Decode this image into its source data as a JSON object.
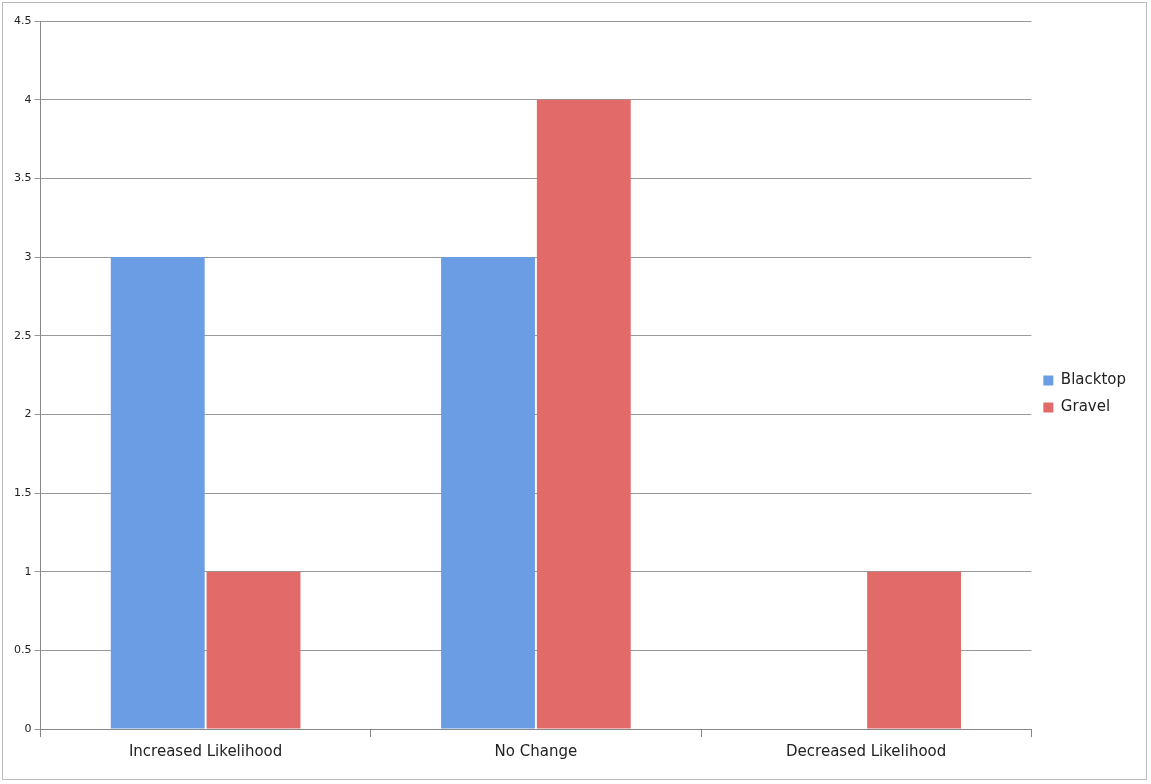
{
  "chart_data": {
    "type": "bar",
    "categories": [
      "Increased Likelihood",
      "No Change",
      "Decreased Likelihood"
    ],
    "series": [
      {
        "name": "Blacktop",
        "color": "#6b9de4",
        "values": [
          3,
          3,
          0
        ]
      },
      {
        "name": "Gravel",
        "color": "#e26a68",
        "values": [
          1,
          4,
          1
        ]
      }
    ],
    "ylim": [
      0,
      4.5
    ],
    "yticks": [
      0,
      0.5,
      1,
      1.5,
      2,
      2.5,
      3,
      3.5,
      4,
      4.5
    ],
    "grid": "y",
    "legend": "right"
  }
}
